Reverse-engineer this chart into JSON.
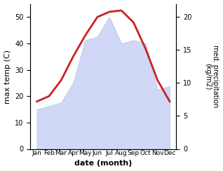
{
  "months": [
    "Jan",
    "Feb",
    "Mar",
    "Apr",
    "May",
    "Jun",
    "Jul",
    "Aug",
    "Sep",
    "Oct",
    "Nov",
    "Dec"
  ],
  "month_indices": [
    0,
    1,
    2,
    3,
    4,
    5,
    6,
    7,
    8,
    9,
    10,
    11
  ],
  "precip_kg": [
    6.0,
    6.5,
    7.0,
    10.0,
    16.5,
    17.0,
    20.0,
    16.0,
    16.5,
    16.0,
    9.0,
    9.5
  ],
  "max_temp": [
    18.0,
    20.0,
    26.0,
    35.0,
    43.0,
    50.0,
    52.0,
    52.5,
    48.0,
    38.0,
    26.0,
    18.0
  ],
  "scale_factor": 2.5,
  "ylabel_left": "max temp (C)",
  "ylabel_right": "med. precipitation\n(kg/m2)",
  "xlabel": "date (month)",
  "ylim_left": [
    0,
    55
  ],
  "ylim_right": [
    0,
    22
  ],
  "yticks_left": [
    0,
    10,
    20,
    30,
    40,
    50
  ],
  "yticks_right": [
    0,
    5,
    10,
    15,
    20
  ],
  "fill_color": "#b8c4f0",
  "fill_alpha": 0.65,
  "line_color": "#cc2222",
  "line_width": 2.0,
  "background_color": "#ffffff"
}
